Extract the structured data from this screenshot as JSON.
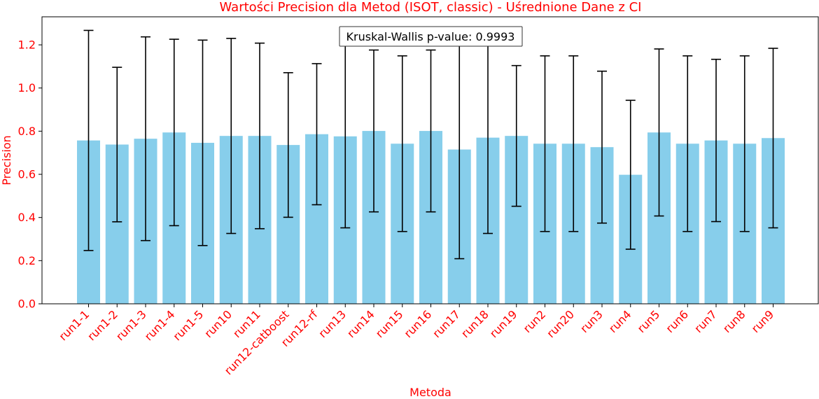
{
  "chart_data": {
    "type": "bar",
    "title": "Wartości Precision dla Metod (ISOT, classic) - Uśrednione Dane z CI",
    "xlabel": "Metoda",
    "ylabel": "Precision",
    "ylim": [
      0,
      1.33
    ],
    "yticks": [
      0.0,
      0.2,
      0.4,
      0.6,
      0.8,
      1.0,
      1.2
    ],
    "ytick_labels": [
      "0.0",
      "0.2",
      "0.4",
      "0.6",
      "0.8",
      "1.0",
      "1.2"
    ],
    "categories": [
      "run1-1",
      "run1-2",
      "run1-3",
      "run1-4",
      "run1-5",
      "run10",
      "run11",
      "run12-catboost",
      "run12-rf",
      "run13",
      "run14",
      "run15",
      "run16",
      "run17",
      "run18",
      "run19",
      "run2",
      "run20",
      "run3",
      "run4",
      "run5",
      "run6",
      "run7",
      "run8",
      "run9"
    ],
    "values": [
      0.757,
      0.738,
      0.765,
      0.794,
      0.746,
      0.778,
      0.778,
      0.736,
      0.786,
      0.776,
      0.801,
      0.742,
      0.801,
      0.715,
      0.77,
      0.778,
      0.742,
      0.742,
      0.726,
      0.598,
      0.794,
      0.742,
      0.757,
      0.742,
      0.768
    ],
    "ci_lower": [
      0.247,
      0.38,
      0.293,
      0.362,
      0.27,
      0.326,
      0.348,
      0.401,
      0.459,
      0.352,
      0.426,
      0.335,
      0.426,
      0.209,
      0.326,
      0.452,
      0.335,
      0.335,
      0.374,
      0.253,
      0.407,
      0.335,
      0.381,
      0.335,
      0.352
    ],
    "ci_upper": [
      1.267,
      1.096,
      1.237,
      1.226,
      1.222,
      1.23,
      1.208,
      1.071,
      1.113,
      1.2,
      1.176,
      1.149,
      1.176,
      1.221,
      1.214,
      1.104,
      1.149,
      1.149,
      1.078,
      0.943,
      1.181,
      1.149,
      1.133,
      1.149,
      1.184
    ],
    "colors": {
      "bar": "#87ceeb",
      "text_accent": "#ff0000",
      "errorbar": "#000000"
    },
    "annotation": "Kruskal-Wallis p-value: 0.9993"
  }
}
